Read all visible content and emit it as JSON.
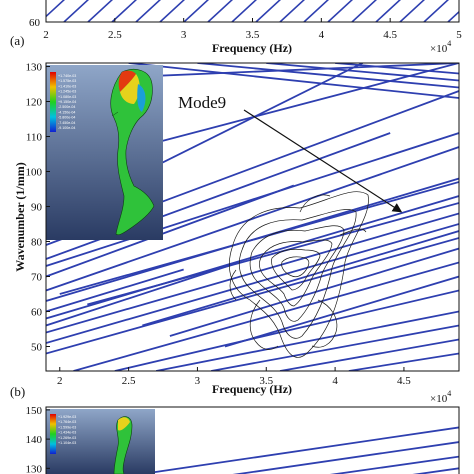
{
  "chart_data": [
    {
      "panel_label": "(a)",
      "type": "line",
      "xlabel": "Frequency (Hz)",
      "x_multiplier": "×10",
      "x_multiplier_exp": "4",
      "xlim": [
        20000,
        50000
      ],
      "x_ticks": [
        {
          "v": 20000,
          "label": "2"
        },
        {
          "v": 25000,
          "label": "2.5"
        },
        {
          "v": 30000,
          "label": "3"
        },
        {
          "v": 35000,
          "label": "3.5"
        },
        {
          "v": 40000,
          "label": "4"
        },
        {
          "v": 45000,
          "label": "4.5"
        },
        {
          "v": 50000,
          "label": "5"
        }
      ],
      "y_ticks_visible": [
        {
          "v": 60,
          "label": "60"
        }
      ],
      "series_color": "#2e3fb0"
    },
    {
      "panel_label": "(b)",
      "type": "line",
      "xlabel": "Frequency (Hz)",
      "ylabel": "Wavenumber (1/mm)",
      "x_multiplier": "×10",
      "x_multiplier_exp": "4",
      "xlim": [
        19000,
        49000
      ],
      "ylim": [
        43,
        131
      ],
      "x_ticks": [
        {
          "v": 20000,
          "label": "2"
        },
        {
          "v": 25000,
          "label": "2.5"
        },
        {
          "v": 30000,
          "label": "3"
        },
        {
          "v": 35000,
          "label": "3.5"
        },
        {
          "v": 40000,
          "label": "4"
        },
        {
          "v": 45000,
          "label": "4.5"
        }
      ],
      "y_ticks": [
        {
          "v": 50,
          "label": "50"
        },
        {
          "v": 60,
          "label": "60"
        },
        {
          "v": 70,
          "label": "70"
        },
        {
          "v": 80,
          "label": "80"
        },
        {
          "v": 90,
          "label": "90"
        },
        {
          "v": 100,
          "label": "100"
        },
        {
          "v": 110,
          "label": "110"
        },
        {
          "v": 120,
          "label": "120"
        },
        {
          "v": 130,
          "label": "130"
        }
      ],
      "annotation": {
        "text": "Mode9",
        "arrow_to": {
          "x": 44800,
          "y": 88.5
        }
      },
      "series_color": "#2e3fb0",
      "series": [
        {
          "x": [
            19000,
            49000
          ],
          "y": [
            126,
            131
          ]
        },
        {
          "x": [
            19000,
            49000
          ],
          "y": [
            100,
            131
          ]
        },
        {
          "x": [
            19000,
            42000
          ],
          "y": [
            86,
            131
          ]
        },
        {
          "x": [
            19000,
            49000
          ],
          "y": [
            79,
            123
          ]
        },
        {
          "x": [
            19000,
            49000
          ],
          "y": [
            73,
            111
          ]
        },
        {
          "x": [
            19000,
            49000
          ],
          "y": [
            66,
            107
          ]
        },
        {
          "x": [
            19000,
            49000
          ],
          "y": [
            63,
            98
          ]
        },
        {
          "x": [
            19000,
            49000
          ],
          "y": [
            58,
            93
          ]
        },
        {
          "x": [
            19000,
            49000
          ],
          "y": [
            54,
            88
          ]
        },
        {
          "x": [
            19000,
            49000
          ],
          "y": [
            51,
            85
          ]
        },
        {
          "x": [
            19000,
            49000
          ],
          "y": [
            48,
            81
          ]
        },
        {
          "x": [
            21000,
            49000
          ],
          "y": [
            43,
            74
          ]
        },
        {
          "x": [
            24000,
            49000
          ],
          "y": [
            43,
            66
          ]
        },
        {
          "x": [
            27000,
            49000
          ],
          "y": [
            43,
            60
          ]
        },
        {
          "x": [
            31000,
            49000
          ],
          "y": [
            43,
            56
          ]
        },
        {
          "x": [
            36000,
            49000
          ],
          "y": [
            43,
            52
          ]
        },
        {
          "x": [
            41000,
            49000
          ],
          "y": [
            43,
            48
          ]
        },
        {
          "x": [
            25000,
            49000
          ],
          "y": [
            131,
            121
          ]
        },
        {
          "x": [
            30000,
            49000
          ],
          "y": [
            131,
            124
          ]
        },
        {
          "x": [
            35000,
            49000
          ],
          "y": [
            131,
            126
          ]
        },
        {
          "x": [
            40000,
            49000
          ],
          "y": [
            131,
            128
          ]
        },
        {
          "x": [
            19000,
            29000
          ],
          "y": [
            60,
            72
          ]
        },
        {
          "x": [
            19000,
            33000
          ],
          "y": [
            56,
            74
          ]
        },
        {
          "x": [
            19000,
            37000
          ],
          "y": [
            70,
            96
          ]
        },
        {
          "x": [
            19000,
            44000
          ],
          "y": [
            75,
            111
          ]
        },
        {
          "x": [
            20000,
            49000
          ],
          "y": [
            65,
            97
          ]
        },
        {
          "x": [
            22000,
            49000
          ],
          "y": [
            62,
            91
          ]
        },
        {
          "x": [
            26000,
            49000
          ],
          "y": [
            56,
            83
          ]
        },
        {
          "x": [
            28000,
            49000
          ],
          "y": [
            53,
            78
          ]
        },
        {
          "x": [
            32000,
            49000
          ],
          "y": [
            50,
            70
          ]
        }
      ]
    },
    {
      "panel_label": "(c)",
      "type": "line",
      "xlim": [
        19000,
        49000
      ],
      "ylim": [
        126,
        151
      ],
      "y_ticks": [
        {
          "v": 130,
          "label": "130"
        },
        {
          "v": 140,
          "label": "140"
        },
        {
          "v": 150,
          "label": "150"
        }
      ],
      "series_color": "#2e3fb0",
      "series": [
        {
          "x": [
            23000,
            49000
          ],
          "y": [
            126,
            144
          ]
        },
        {
          "x": [
            30000,
            49000
          ],
          "y": [
            126,
            139
          ]
        },
        {
          "x": [
            37000,
            49000
          ],
          "y": [
            126,
            134
          ]
        },
        {
          "x": [
            43000,
            49000
          ],
          "y": [
            126,
            130
          ]
        }
      ]
    }
  ],
  "insets": {
    "b_legend": [
      "+1.740e-03",
      "+1.575e-03",
      "+1.410e-03",
      "+1.245e-03",
      "+1.080e-03",
      "+9.150e-04",
      "-2.500e-04",
      "-4.150e-04",
      "-5.800e-04",
      "-7.450e-04",
      "-9.100e-04"
    ],
    "c_legend": [
      "+1.929e-03",
      "+1.764e-03",
      "+1.599e-03",
      "+1.434e-03",
      "+1.269e-03",
      "+1.104e-03"
    ]
  }
}
